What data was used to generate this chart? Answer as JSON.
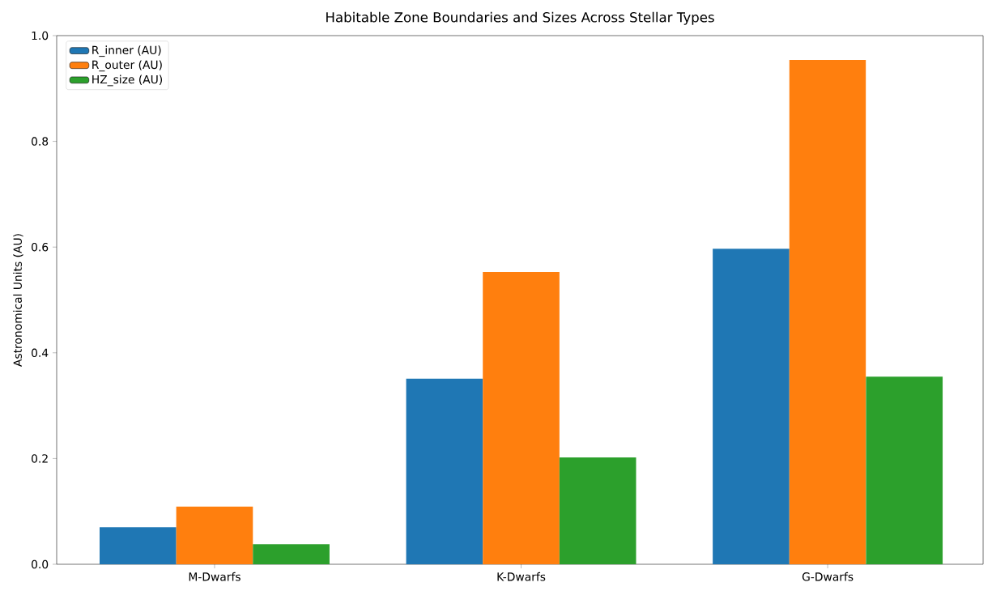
{
  "chart_data": {
    "type": "bar",
    "title": "Habitable Zone Boundaries and Sizes Across Stellar Types",
    "ylabel": "Astronomical Units (AU)",
    "categories": [
      "M-Dwarfs",
      "K-Dwarfs",
      "G-Dwarfs"
    ],
    "series": [
      {
        "name": "R_inner (AU)",
        "color": "#1f77b4",
        "values": [
          0.07,
          0.351,
          0.597
        ]
      },
      {
        "name": "R_outer (AU)",
        "color": "#ff7f0e",
        "values": [
          0.109,
          0.553,
          0.954
        ]
      },
      {
        "name": "HZ_size (AU)",
        "color": "#2ca02c",
        "values": [
          0.038,
          0.202,
          0.355
        ]
      }
    ],
    "ylim": [
      0,
      1.0
    ],
    "yticks": [
      {
        "value": 0,
        "label": "0.0"
      },
      0.2,
      0.4,
      0.6,
      0.8,
      {
        "value": 1.0,
        "label": "1.0"
      }
    ],
    "legend": "top left",
    "grid": false
  }
}
